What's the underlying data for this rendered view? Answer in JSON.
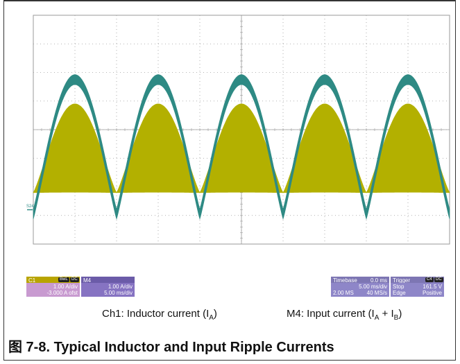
{
  "colors": {
    "ch1": "#b3b000",
    "m4": "#2e8a84",
    "grid": "#9a9a9a",
    "c1_header": "#b8a400",
    "c1_body": "#c89ad0",
    "m4_header": "#6b5ba8",
    "m4_body": "#8673c2",
    "panel_header": "#7d76b3",
    "panel_body": "#8e86c8"
  },
  "marker_label": "S24",
  "chart_data": {
    "type": "line",
    "title": "",
    "xlabel": "",
    "ylabel": "",
    "x_divisions": 10,
    "y_divisions": 8,
    "cycles": 5,
    "series": [
      {
        "name": "Ch1: Inductor current (IA)",
        "style": "filled-envelope",
        "peak_div": 4.9,
        "trough_div": 1.8,
        "ripple_div": 1.4
      },
      {
        "name": "M4: Input current (IA + IB)",
        "style": "band",
        "peak_div": 5.75,
        "trough_div": 1.05,
        "ripple_div": 0.35
      }
    ]
  },
  "c1": {
    "label": "C1",
    "chip1": "BwL",
    "chip2": "DC",
    "scale": "1.00 A/div",
    "offset": "-3.000 A ofst"
  },
  "m4": {
    "label": "M4",
    "scale": "1.00 A/div",
    "time": "5.00 ms/div"
  },
  "timebase": {
    "label": "Timebase",
    "value": "0.0 ms",
    "per_div": "5.00 ms/div",
    "samples": "2.00 MS",
    "rate": "40 MS/s"
  },
  "trigger": {
    "label": "Trigger",
    "chip1": "C4",
    "chip2": "DC",
    "mode": "Stop",
    "level": "161.5 V",
    "type": "Edge",
    "slope": "Positive"
  },
  "captions": {
    "ch1_prefix": "Ch1: Inductor current (I",
    "ch1_sub": "A",
    "ch1_suffix": ")",
    "m4_prefix": "M4: Input current (I",
    "m4_sub_a": "A",
    "m4_mid": " + I",
    "m4_sub_b": "B",
    "m4_suffix": ")"
  },
  "figure_title": "图 7-8. Typical Inductor and Input Ripple Currents"
}
